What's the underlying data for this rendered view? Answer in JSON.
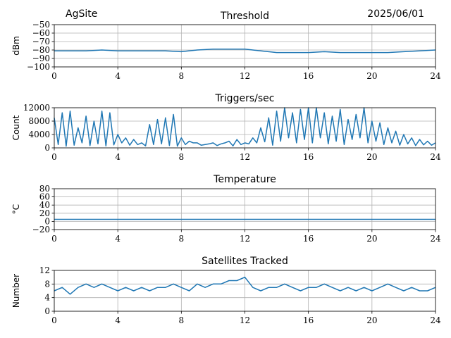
{
  "header": {
    "site": "AgSite",
    "date": "2025/06/01"
  },
  "colors": {
    "series": "#1f77b4",
    "grid": "#b0b0b0",
    "axis": "#000000"
  },
  "chart_data": [
    {
      "type": "line",
      "title": "Threshold",
      "ylabel": "dBm",
      "xlim": [
        0,
        24
      ],
      "ylim": [
        -100,
        -50
      ],
      "xticks": [
        0,
        4,
        8,
        12,
        16,
        20,
        24
      ],
      "yticks": [
        -100,
        -90,
        -80,
        -70,
        -60,
        -50
      ],
      "ytick_labels": [
        "−100",
        "−90",
        "−80",
        "−70",
        "−60",
        "−50"
      ],
      "grid": true,
      "series": [
        {
          "x": [
            0,
            1,
            2,
            3,
            4,
            5,
            6,
            7,
            8,
            9,
            10,
            11,
            12,
            13,
            14,
            15,
            16,
            17,
            18,
            19,
            20,
            21,
            22,
            23,
            24
          ],
          "values": [
            -81,
            -81,
            -81,
            -80,
            -81,
            -81,
            -81,
            -81,
            -82,
            -80,
            -79,
            -79,
            -79,
            -81,
            -83,
            -83,
            -83,
            -82,
            -83,
            -83,
            -83,
            -83,
            -82,
            -81,
            -80
          ]
        }
      ]
    },
    {
      "type": "line",
      "title": "Triggers/sec",
      "ylabel": "Count",
      "xlim": [
        0,
        24
      ],
      "ylim": [
        0,
        12000
      ],
      "xticks": [
        0,
        4,
        8,
        12,
        16,
        20,
        24
      ],
      "yticks": [
        0,
        4000,
        8000,
        12000
      ],
      "ytick_labels": [
        "0",
        "4000",
        "8000",
        "12000"
      ],
      "grid": true,
      "series": [
        {
          "x": [
            0,
            0.25,
            0.5,
            0.75,
            1,
            1.25,
            1.5,
            1.75,
            2,
            2.25,
            2.5,
            2.75,
            3,
            3.25,
            3.5,
            3.75,
            4,
            4.25,
            4.5,
            4.75,
            5,
            5.25,
            5.5,
            5.75,
            6,
            6.25,
            6.5,
            6.75,
            7,
            7.25,
            7.5,
            7.75,
            8,
            8.25,
            8.5,
            8.75,
            9,
            9.25,
            9.5,
            9.75,
            10,
            10.25,
            10.5,
            10.75,
            11,
            11.25,
            11.5,
            11.75,
            12,
            12.25,
            12.5,
            12.75,
            13,
            13.25,
            13.5,
            13.75,
            14,
            14.25,
            14.5,
            14.75,
            15,
            15.25,
            15.5,
            15.75,
            16,
            16.25,
            16.5,
            16.75,
            17,
            17.25,
            17.5,
            17.75,
            18,
            18.25,
            18.5,
            18.75,
            19,
            19.25,
            19.5,
            19.75,
            20,
            20.25,
            20.5,
            20.75,
            21,
            21.25,
            21.5,
            21.75,
            22,
            22.25,
            22.5,
            22.75,
            23,
            23.25,
            23.5,
            23.75,
            24
          ],
          "values": [
            9000,
            1000,
            10500,
            500,
            11000,
            800,
            6000,
            1500,
            9500,
            700,
            8000,
            1200,
            11000,
            600,
            10500,
            900,
            4000,
            1500,
            3000,
            800,
            2500,
            1000,
            1500,
            600,
            7000,
            1000,
            8500,
            1200,
            9000,
            700,
            10000,
            500,
            3000,
            1000,
            2000,
            1500,
            1500,
            800,
            1000,
            1200,
            1500,
            700,
            1200,
            1500,
            2000,
            600,
            2500,
            1000,
            1500,
            1200,
            3000,
            1500,
            6000,
            1800,
            9000,
            800,
            11000,
            2000,
            12000,
            3000,
            10500,
            1500,
            11500,
            2500,
            12000,
            1500,
            12000,
            3000,
            10500,
            1200,
            9500,
            2000,
            11500,
            1000,
            8500,
            2500,
            10000,
            3000,
            12000,
            1500,
            8000,
            2000,
            7500,
            1000,
            6000,
            1500,
            5000,
            800,
            4000,
            1200,
            3000,
            700,
            2500,
            900,
            2000,
            800,
            1500
          ]
        }
      ]
    },
    {
      "type": "line",
      "title": "Temperature",
      "ylabel": "°C",
      "xlim": [
        0,
        24
      ],
      "ylim": [
        -20,
        80
      ],
      "xticks": [
        0,
        4,
        8,
        12,
        16,
        20,
        24
      ],
      "yticks": [
        -20,
        0,
        20,
        40,
        60,
        80
      ],
      "ytick_labels": [
        "−20",
        "0",
        "20",
        "40",
        "60",
        "80"
      ],
      "grid": true,
      "series": [
        {
          "x": [
            0,
            24
          ],
          "values": [
            5,
            5
          ]
        }
      ]
    },
    {
      "type": "line",
      "title": "Satellites Tracked",
      "ylabel": "Number",
      "xlim": [
        0,
        24
      ],
      "ylim": [
        0,
        12
      ],
      "xticks": [
        0,
        4,
        8,
        12,
        16,
        20,
        24
      ],
      "yticks": [
        0,
        4,
        8,
        12
      ],
      "ytick_labels": [
        "0",
        "4",
        "8",
        "12"
      ],
      "grid": true,
      "series": [
        {
          "x": [
            0,
            0.5,
            1,
            1.5,
            2,
            2.5,
            3,
            3.5,
            4,
            4.5,
            5,
            5.5,
            6,
            6.5,
            7,
            7.5,
            8,
            8.5,
            9,
            9.5,
            10,
            10.5,
            11,
            11.5,
            12,
            12.5,
            13,
            13.5,
            14,
            14.5,
            15,
            15.5,
            16,
            16.5,
            17,
            17.5,
            18,
            18.5,
            19,
            19.5,
            20,
            20.5,
            21,
            21.5,
            22,
            22.5,
            23,
            23.5,
            24
          ],
          "values": [
            6,
            7,
            5,
            7,
            8,
            7,
            8,
            7,
            6,
            7,
            6,
            7,
            6,
            7,
            7,
            8,
            7,
            6,
            8,
            7,
            8,
            8,
            9,
            9,
            10,
            7,
            6,
            7,
            7,
            8,
            7,
            6,
            7,
            7,
            8,
            7,
            6,
            7,
            6,
            7,
            6,
            7,
            8,
            7,
            6,
            7,
            6,
            6,
            7
          ]
        }
      ]
    }
  ]
}
